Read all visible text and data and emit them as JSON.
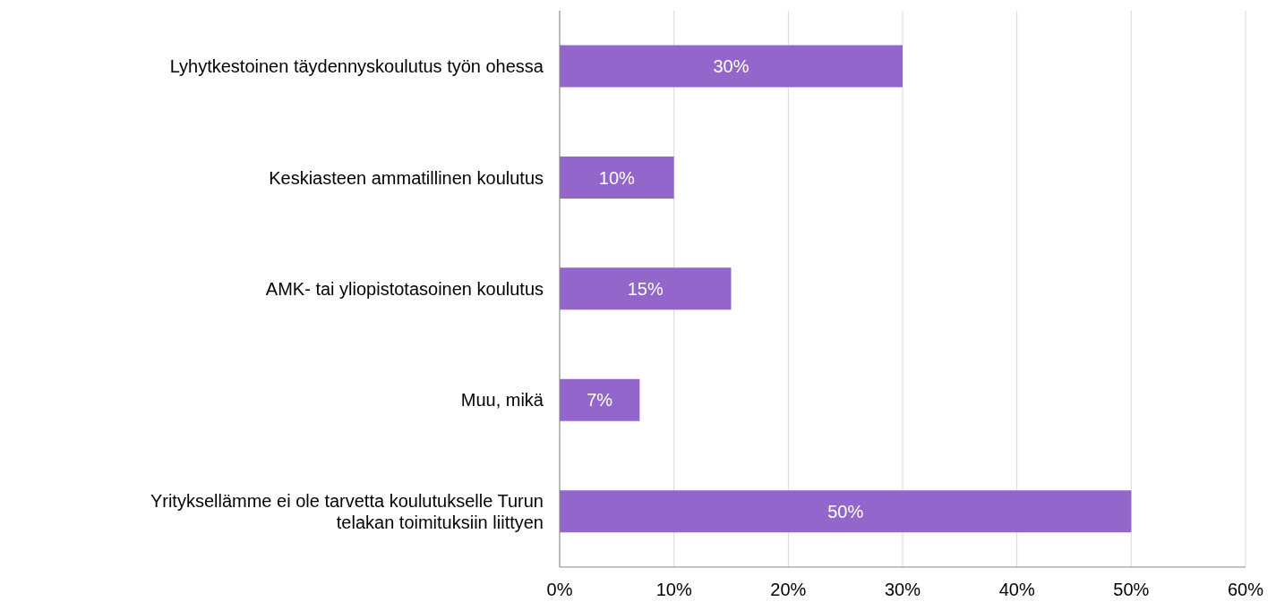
{
  "chart_data": {
    "type": "bar",
    "orientation": "horizontal",
    "categories": [
      "Lyhytkestoinen täydennyskoulutus työn ohessa",
      "Keskiasteen ammatillinen koulutus",
      "AMK- tai yliopistotasoinen koulutus",
      "Muu, mikä",
      "Yrityksellämme ei ole tarvetta koulutukselle Turun telakan toimituksiin liittyen"
    ],
    "values": [
      30,
      10,
      15,
      7,
      50
    ],
    "value_labels": [
      "30%",
      "10%",
      "15%",
      "7%",
      "50%"
    ],
    "color": "#9366cc",
    "xlim": [
      0,
      60
    ],
    "xticks": [
      {
        "value": 0,
        "label": "0%"
      },
      {
        "value": 10,
        "label": "10%"
      },
      {
        "value": 20,
        "label": "20%"
      },
      {
        "value": 30,
        "label": "30%"
      },
      {
        "value": 40,
        "label": "40%"
      },
      {
        "value": 50,
        "label": "50%"
      },
      {
        "value": 60,
        "label": "60%"
      }
    ],
    "grid": "x",
    "legend": false
  }
}
